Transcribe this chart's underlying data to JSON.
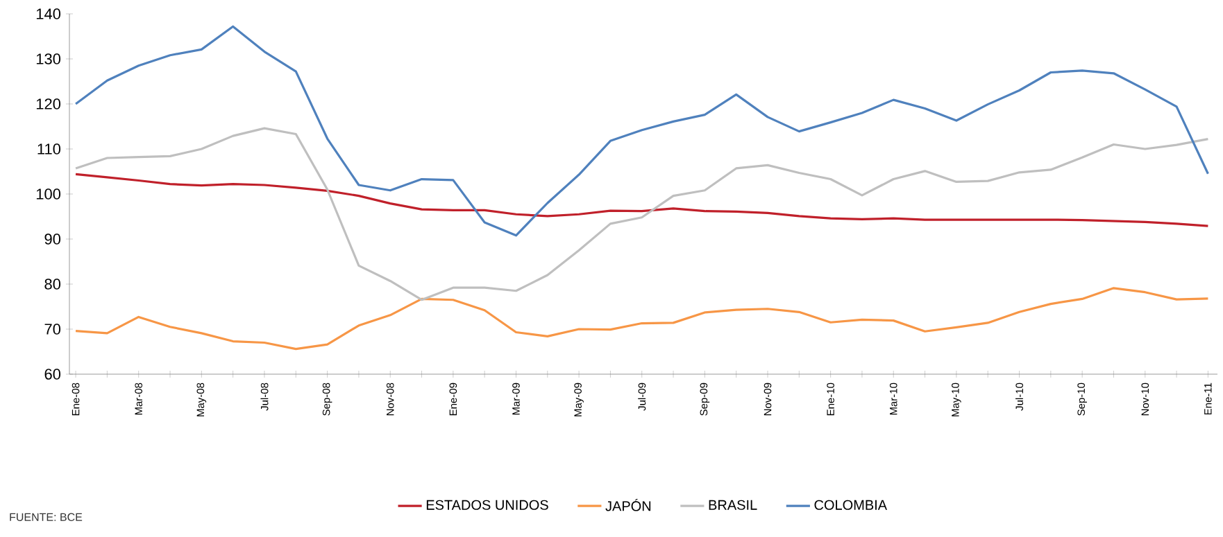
{
  "chart_data": {
    "type": "line",
    "categories": [
      "Ene-08",
      null,
      "Mar-08",
      null,
      "May-08",
      null,
      "Jul-08",
      null,
      "Sep-08",
      null,
      "Nov-08",
      null,
      "Ene-09",
      null,
      "Mar-09",
      null,
      "May-09",
      null,
      "Jul-09",
      null,
      "Sep-09",
      null,
      "Nov-09",
      null,
      "Ene-10",
      null,
      "Mar-10",
      null,
      "May-10",
      null,
      "Jul-10",
      null,
      "Sep-10",
      null,
      "Nov-10",
      null,
      "Ene-11"
    ],
    "ylim": [
      60,
      140
    ],
    "yticks": [
      60,
      70,
      80,
      90,
      100,
      110,
      120,
      130,
      140
    ],
    "legend": "bottom",
    "marker": "none",
    "line_style": "solid",
    "annotations": [
      "FUENTE: BCE"
    ],
    "series": [
      {
        "name": "ESTADOS UNIDOS",
        "color": "#c0202a",
        "values": [
          104.4,
          103.7,
          103,
          102.2,
          101.9,
          102.2,
          102,
          101.4,
          100.7,
          99.6,
          97.9,
          96.6,
          96.4,
          96.4,
          95.5,
          95.1,
          95.5,
          96.3,
          96.2,
          96.8,
          96.2,
          96.1,
          95.8,
          95.1,
          94.6,
          94.4,
          94.6,
          94.3,
          94.3,
          94.3,
          94.3,
          94.3,
          94.2,
          94,
          93.8,
          93.4,
          92.9
        ]
      },
      {
        "name": "JAPÓN",
        "color": "#f79646",
        "values": [
          69.6,
          69.1,
          72.7,
          70.5,
          69.1,
          67.3,
          67,
          65.6,
          66.6,
          70.8,
          73.1,
          76.7,
          76.5,
          74.2,
          69.3,
          68.4,
          70,
          69.9,
          71.3,
          71.4,
          73.7,
          74.3,
          74.5,
          73.8,
          71.5,
          72.1,
          71.9,
          69.5,
          70.4,
          71.4,
          73.8,
          75.6,
          76.7,
          79.1,
          78.2,
          76.6,
          76.8
        ]
      },
      {
        "name": "BRASIL",
        "color": "#bfbfbf",
        "values": [
          105.7,
          108,
          108.2,
          108.4,
          110,
          112.9,
          114.6,
          113.3,
          101,
          84.1,
          80.7,
          76.5,
          79.2,
          79.2,
          78.5,
          82,
          87.5,
          93.4,
          94.8,
          99.6,
          100.8,
          105.7,
          106.4,
          104.7,
          103.3,
          99.7,
          103.3,
          105.1,
          102.7,
          102.9,
          104.8,
          105.4,
          108.1,
          111,
          110,
          110.9,
          112.2
        ]
      },
      {
        "name": "COLOMBIA",
        "color": "#4f81bd",
        "values": [
          120,
          125.2,
          128.5,
          130.8,
          132.1,
          137.2,
          131.6,
          127.2,
          112.3,
          102,
          100.8,
          103.3,
          103.1,
          93.7,
          90.8,
          98,
          104.3,
          111.8,
          114.2,
          116.1,
          117.6,
          122.1,
          117.1,
          113.9,
          115.9,
          118,
          120.9,
          119,
          116.3,
          119.9,
          123,
          127,
          127.4,
          126.8,
          123.2,
          119.4,
          104.5
        ]
      }
    ]
  }
}
